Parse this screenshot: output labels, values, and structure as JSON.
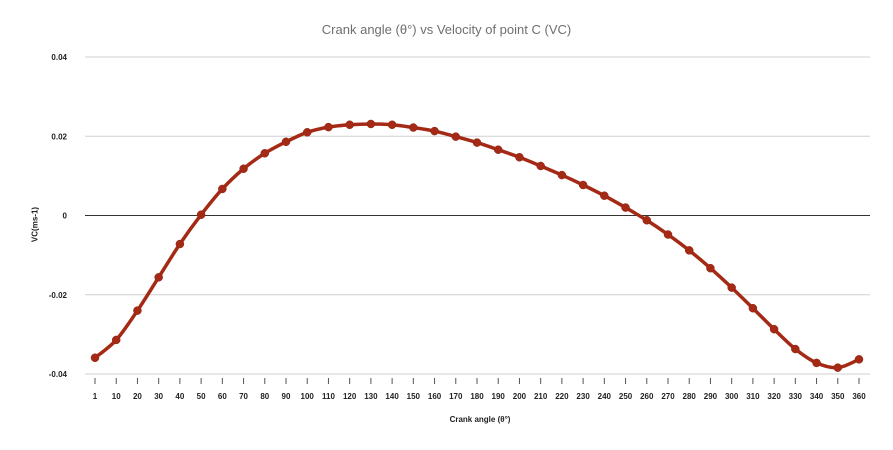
{
  "chart_data": {
    "type": "line",
    "title": "Crank angle (θ°) vs Velocity of point C (VC)",
    "xlabel": "Crank angle (θ°)",
    "ylabel": "VC(ms-1)",
    "ylim": [
      -0.04,
      0.04
    ],
    "y_ticks": [
      0.04,
      0.02,
      0,
      -0.02,
      -0.04
    ],
    "y_tick_labels": [
      "0.04",
      "0.02",
      "0",
      "-0.02",
      "-0.04"
    ],
    "grid": true,
    "legend": "none",
    "series_color": "#a52a16",
    "categories": [
      "1",
      "10",
      "20",
      "30",
      "40",
      "50",
      "60",
      "70",
      "80",
      "90",
      "100",
      "110",
      "120",
      "130",
      "140",
      "150",
      "160",
      "170",
      "180",
      "190",
      "200",
      "210",
      "220",
      "230",
      "240",
      "250",
      "260",
      "270",
      "280",
      "290",
      "300",
      "310",
      "320",
      "330",
      "340",
      "350",
      "360"
    ],
    "series": [
      {
        "values": [
          -0.0359,
          -0.0314,
          -0.024,
          -0.0156,
          -0.0072,
          0.0002,
          0.0067,
          0.0118,
          0.0157,
          0.0186,
          0.021,
          0.0223,
          0.0229,
          0.0231,
          0.0229,
          0.0222,
          0.0213,
          0.0199,
          0.0184,
          0.0166,
          0.0147,
          0.0125,
          0.0102,
          0.0077,
          0.005,
          0.002,
          -0.0012,
          -0.0048,
          -0.0088,
          -0.0133,
          -0.0182,
          -0.0234,
          -0.0287,
          -0.0337,
          -0.0372,
          -0.0384,
          -0.0363
        ]
      }
    ]
  }
}
